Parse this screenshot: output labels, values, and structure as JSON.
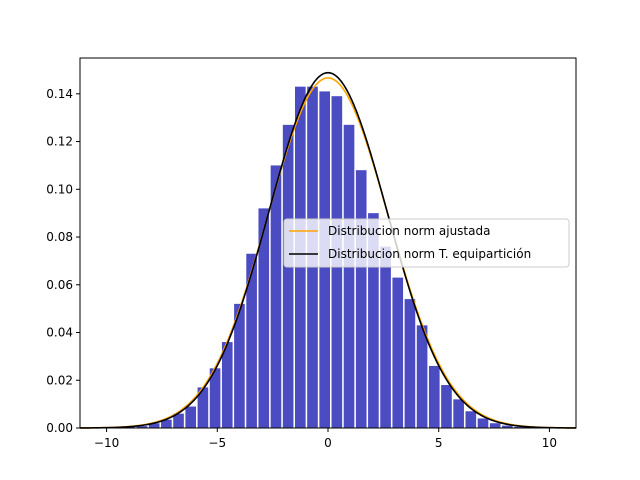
{
  "chart_data": {
    "type": "bar",
    "title": "",
    "xlabel": "",
    "ylabel": "",
    "xlim": [
      -11.2,
      11.2
    ],
    "ylim": [
      0,
      0.155
    ],
    "grid": false,
    "legend_position": "center-right",
    "x_ticks": [
      -10,
      -5,
      0,
      5,
      10
    ],
    "x_tick_labels": [
      "−10",
      "−5",
      "0",
      "5",
      "10"
    ],
    "y_ticks": [
      0,
      0.02,
      0.04,
      0.06,
      0.08,
      0.1,
      0.12,
      0.14
    ],
    "y_tick_labels": [
      "0.00",
      "0.02",
      "0.04",
      "0.06",
      "0.08",
      "0.10",
      "0.12",
      "0.14"
    ],
    "histogram": {
      "color": "#4b4bc2",
      "bin_width": 0.55,
      "bar_width": 0.48,
      "bin_centers": [
        -9.5,
        -8.95,
        -8.4,
        -7.85,
        -7.3,
        -6.75,
        -6.2,
        -5.65,
        -5.1,
        -4.55,
        -4.0,
        -3.45,
        -2.9,
        -2.35,
        -1.8,
        -1.25,
        -0.7,
        -0.15,
        0.4,
        0.95,
        1.5,
        2.05,
        2.6,
        3.15,
        3.7,
        4.25,
        4.8,
        5.35,
        5.9,
        6.45,
        7.0,
        7.55,
        8.1,
        8.65,
        9.2
      ],
      "values": [
        0.0002,
        0.0004,
        0.0008,
        0.002,
        0.0035,
        0.006,
        0.009,
        0.017,
        0.025,
        0.036,
        0.052,
        0.073,
        0.092,
        0.11,
        0.127,
        0.143,
        0.143,
        0.141,
        0.139,
        0.127,
        0.108,
        0.09,
        0.076,
        0.063,
        0.054,
        0.043,
        0.026,
        0.018,
        0.012,
        0.007,
        0.004,
        0.002,
        0.001,
        0.0005,
        0.0002
      ]
    },
    "series": [
      {
        "name": "Distribucion norm ajustada",
        "color": "#ffa500",
        "mean": 0.0,
        "std": 2.72
      },
      {
        "name": "Distribucion norm T. equipartición",
        "color": "#000000",
        "mean": 0.0,
        "std": 2.68
      }
    ]
  }
}
